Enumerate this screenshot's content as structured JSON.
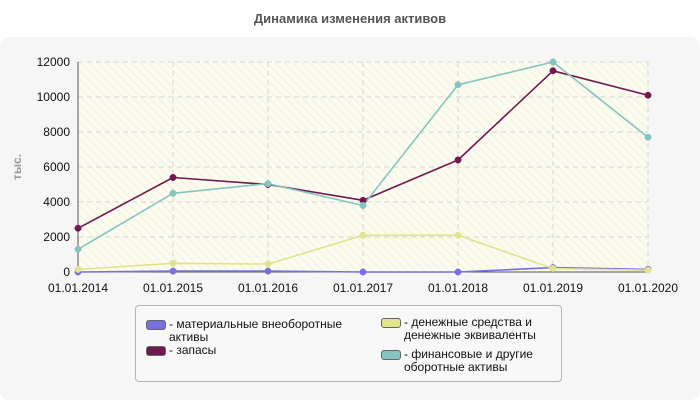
{
  "title": "Динамика изменения активов",
  "chart_data": {
    "type": "line",
    "title": "Динамика изменения активов",
    "ylabel": "тыс.",
    "xlabel": "",
    "categories": [
      "01.01.2014",
      "01.01.2015",
      "01.01.2016",
      "01.01.2017",
      "01.01.2018",
      "01.01.2019",
      "01.01.2020"
    ],
    "ylim": [
      0,
      12000
    ],
    "yticks": [
      "0",
      "2000",
      "4000",
      "6000",
      "8000",
      "10000",
      "12000"
    ],
    "grid": true,
    "legend_position": "bottom",
    "series": [
      {
        "name": "- материальные внеоборотные активы",
        "color": "#7a6fe0",
        "values": [
          0,
          50,
          50,
          0,
          0,
          250,
          150
        ]
      },
      {
        "name": "- запасы",
        "color": "#6e1a4e",
        "values": [
          2500,
          5400,
          5000,
          4100,
          6400,
          11500,
          10100
        ]
      },
      {
        "name": "- денежные средства и денежные эквиваленты",
        "color": "#e3e38e",
        "values": [
          150,
          500,
          450,
          2100,
          2100,
          200,
          100
        ]
      },
      {
        "name": "- финансовые и другие оборотные активы",
        "color": "#86c4c0",
        "values": [
          1300,
          4500,
          5050,
          3800,
          10700,
          12000,
          7700
        ]
      }
    ]
  },
  "legend": {
    "items": [
      {
        "text": "- материальные внеоборотные\nактивы",
        "color": "#7a6fe0"
      },
      {
        "text": "- запасы",
        "color": "#6e1a4e"
      },
      {
        "text": "- денежные средства и\nденежные эквиваленты",
        "color": "#e3e38e"
      },
      {
        "text": "- финансовые и другие\nоборотные активы",
        "color": "#86c4c0"
      }
    ]
  }
}
